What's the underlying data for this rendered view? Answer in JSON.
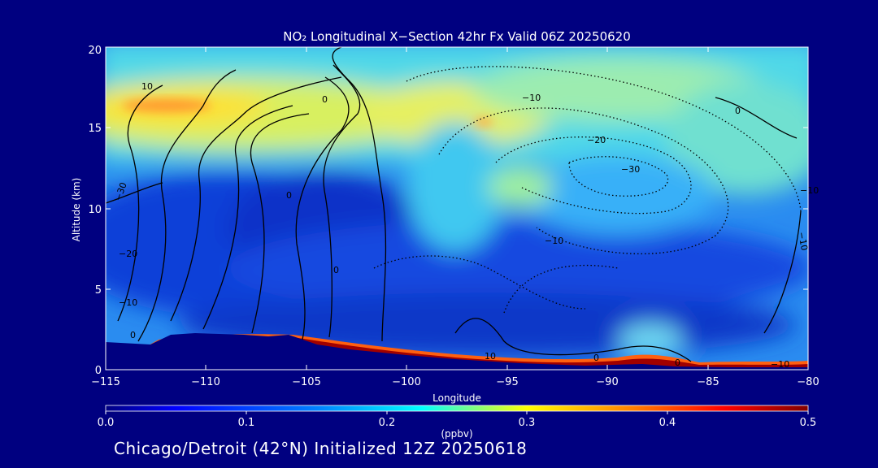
{
  "chart_data": {
    "type": "heatmap",
    "title": "NO₂ Longitudinal X−Section 42hr  Fx Valid 06Z 20250620",
    "xlabel": "Longitude",
    "ylabel": "Altitude (km)",
    "xlim": [
      -115,
      -80
    ],
    "ylim": [
      0,
      20
    ],
    "x_ticks": [
      "−115",
      "−110",
      "−105",
      "−100",
      "−95",
      "−90",
      "−85",
      "−80"
    ],
    "y_ticks": [
      "0",
      "5",
      "10",
      "15",
      "20"
    ],
    "colorbar": {
      "label": "(ppbv)",
      "range": [
        0.0,
        0.5
      ],
      "ticks": [
        "0.0",
        "0.1",
        "0.2",
        "0.3",
        "0.4",
        "0.5"
      ]
    },
    "contour_labels": [
      "10",
      "0",
      "−10",
      "−20",
      "−30",
      "−30",
      "0",
      "−20",
      "−10",
      "−10",
      "0",
      "−10",
      "0",
      "10",
      "0",
      "0",
      "0",
      "−10",
      "−10"
    ],
    "colors": {
      "background": "#000080",
      "low": "#1030d0",
      "mid": "#00e0ff",
      "high": "#ffff40",
      "max": "#8b0000"
    }
  },
  "footer": "Chicago/Detroit (42°N) Initialized 12Z 20250618"
}
